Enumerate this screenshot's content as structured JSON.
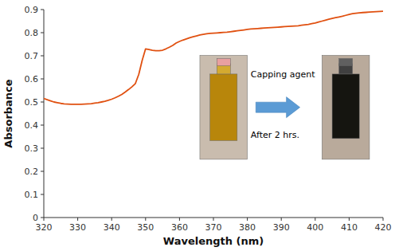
{
  "chart_data": {
    "type": "line",
    "x": [
      320,
      321,
      322,
      323,
      324,
      325,
      326,
      327,
      328,
      329,
      330,
      331,
      332,
      333,
      334,
      335,
      336,
      337,
      338,
      339,
      340,
      341,
      342,
      343,
      344,
      345,
      346,
      347,
      348,
      349,
      350,
      351,
      352,
      353,
      354,
      355,
      356,
      357,
      358,
      359,
      360,
      361,
      362,
      363,
      364,
      365,
      366,
      367,
      368,
      369,
      370,
      371,
      372,
      373,
      374,
      375,
      376,
      377,
      378,
      379,
      380,
      381,
      382,
      383,
      384,
      385,
      386,
      387,
      388,
      389,
      390,
      391,
      392,
      393,
      394,
      395,
      396,
      397,
      398,
      399,
      400,
      401,
      402,
      403,
      404,
      405,
      406,
      407,
      408,
      409,
      410,
      411,
      412,
      413,
      414,
      415,
      416,
      417,
      418,
      419,
      420
    ],
    "values": [
      0.515,
      0.51,
      0.505,
      0.5,
      0.497,
      0.494,
      0.492,
      0.491,
      0.49,
      0.49,
      0.49,
      0.49,
      0.491,
      0.492,
      0.493,
      0.495,
      0.497,
      0.5,
      0.503,
      0.507,
      0.512,
      0.518,
      0.525,
      0.533,
      0.543,
      0.554,
      0.566,
      0.58,
      0.62,
      0.68,
      0.73,
      0.727,
      0.724,
      0.722,
      0.722,
      0.724,
      0.73,
      0.737,
      0.745,
      0.755,
      0.762,
      0.768,
      0.773,
      0.778,
      0.782,
      0.786,
      0.79,
      0.793,
      0.795,
      0.797,
      0.798,
      0.799,
      0.8,
      0.801,
      0.802,
      0.804,
      0.806,
      0.808,
      0.81,
      0.812,
      0.814,
      0.816,
      0.817,
      0.818,
      0.819,
      0.82,
      0.821,
      0.822,
      0.823,
      0.824,
      0.825,
      0.826,
      0.827,
      0.828,
      0.829,
      0.83,
      0.832,
      0.834,
      0.836,
      0.839,
      0.842,
      0.846,
      0.85,
      0.854,
      0.858,
      0.862,
      0.865,
      0.868,
      0.871,
      0.875,
      0.879,
      0.882,
      0.884,
      0.886,
      0.887,
      0.888,
      0.889,
      0.89,
      0.891,
      0.892,
      0.893
    ],
    "color": "#E05010",
    "xlabel": "Wavelength (nm)",
    "ylabel": "Absorbance",
    "xlim": [
      320,
      420
    ],
    "ylim": [
      0,
      0.9
    ],
    "xticks": [
      320,
      330,
      340,
      350,
      360,
      370,
      380,
      390,
      400,
      410,
      420
    ],
    "yticks": [
      0,
      0.1,
      0.2,
      0.3,
      0.4,
      0.5,
      0.6,
      0.7,
      0.8,
      0.9
    ],
    "annotations": [
      "Capping agent",
      "After 2 hrs."
    ],
    "grid": false
  }
}
